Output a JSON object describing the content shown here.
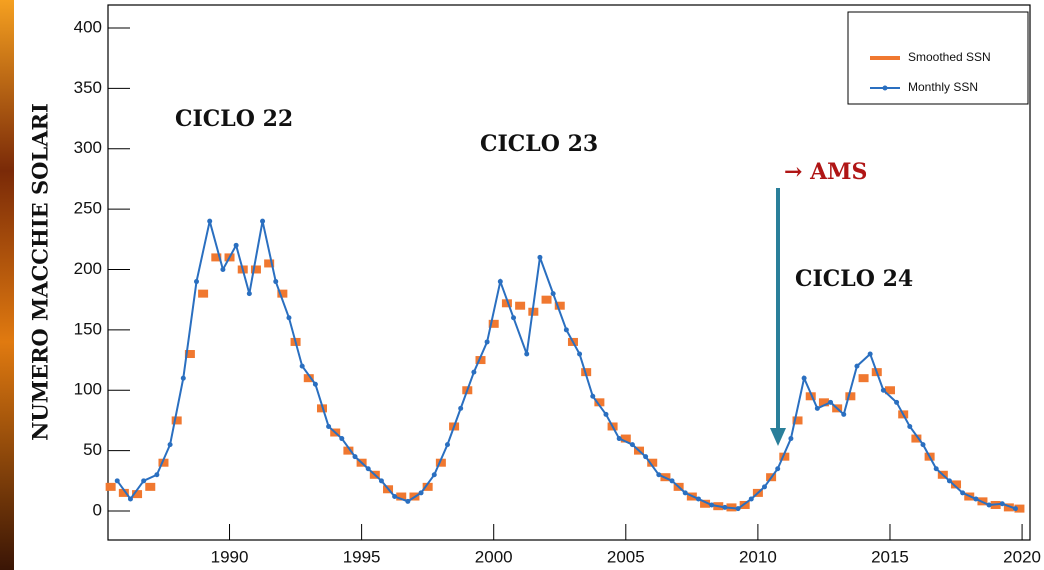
{
  "chart_data": {
    "type": "line",
    "y_label": "NUMERO MACCHIE SOLARI",
    "annotations": [
      "CICLO 22",
      "CICLO 23",
      "CICLO 24",
      "→ AMS"
    ],
    "xlim": [
      1985.4,
      2020.3
    ],
    "ylim": [
      -24,
      419
    ],
    "xticks": [
      1990,
      1995,
      2000,
      2005,
      2010,
      2015,
      2020
    ],
    "yticks": [
      0,
      50,
      100,
      150,
      200,
      250,
      300,
      350,
      400
    ],
    "legend": "top-right",
    "series": [
      {
        "name": "Smoothed SSN",
        "color": "#f07830",
        "x": [
          1985.5,
          1986,
          1986.5,
          1987,
          1987.5,
          1988,
          1988.5,
          1989,
          1989.5,
          1990,
          1990.5,
          1991,
          1991.5,
          1992,
          1992.5,
          1993,
          1993.5,
          1994,
          1994.5,
          1995,
          1995.5,
          1996,
          1996.5,
          1997,
          1997.5,
          1998,
          1998.5,
          1999,
          1999.5,
          2000,
          2000.5,
          2001,
          2001.5,
          2002,
          2002.5,
          2003,
          2003.5,
          2004,
          2004.5,
          2005,
          2005.5,
          2006,
          2006.5,
          2007,
          2007.5,
          2008,
          2008.5,
          2009,
          2009.5,
          2010,
          2010.5,
          2011,
          2011.5,
          2012,
          2012.5,
          2013,
          2013.5,
          2014,
          2014.5,
          2015,
          2015.5,
          2016,
          2016.5,
          2017,
          2017.5,
          2018,
          2018.5,
          2019,
          2019.5,
          2019.9
        ],
        "values": [
          20,
          15,
          14,
          20,
          40,
          75,
          130,
          180,
          210,
          210,
          200,
          200,
          205,
          180,
          140,
          110,
          85,
          65,
          50,
          40,
          30,
          18,
          12,
          12,
          20,
          40,
          70,
          100,
          125,
          155,
          172,
          170,
          165,
          175,
          170,
          140,
          115,
          90,
          70,
          60,
          50,
          40,
          28,
          20,
          12,
          6,
          4,
          3,
          5,
          15,
          28,
          45,
          75,
          95,
          90,
          85,
          95,
          110,
          115,
          100,
          80,
          60,
          45,
          30,
          22,
          12,
          8,
          5,
          3,
          2
        ]
      },
      {
        "name": "Monthly SSN",
        "color": "#2a6fc0",
        "x": [
          1985.75,
          1986.25,
          1986.75,
          1987.25,
          1987.75,
          1988.25,
          1988.75,
          1989.25,
          1989.75,
          1990.25,
          1990.75,
          1991.25,
          1991.75,
          1992.25,
          1992.75,
          1993.25,
          1993.75,
          1994.25,
          1994.75,
          1995.25,
          1995.75,
          1996.25,
          1996.75,
          1997.25,
          1997.75,
          1998.25,
          1998.75,
          1999.25,
          1999.75,
          2000.25,
          2000.75,
          2001.25,
          2001.75,
          2002.25,
          2002.75,
          2003.25,
          2003.75,
          2004.25,
          2004.75,
          2005.25,
          2005.75,
          2006.25,
          2006.75,
          2007.25,
          2007.75,
          2008.25,
          2008.75,
          2009.25,
          2009.75,
          2010.25,
          2010.75,
          2011.25,
          2011.75,
          2012.25,
          2012.75,
          2013.25,
          2013.75,
          2014.25,
          2014.75,
          2015.25,
          2015.75,
          2016.25,
          2016.75,
          2017.25,
          2017.75,
          2018.25,
          2018.75,
          2019.25,
          2019.75
        ],
        "values": [
          25,
          10,
          25,
          30,
          55,
          110,
          190,
          240,
          200,
          220,
          180,
          240,
          190,
          160,
          120,
          105,
          70,
          60,
          45,
          35,
          25,
          12,
          8,
          15,
          30,
          55,
          85,
          115,
          140,
          190,
          160,
          130,
          210,
          180,
          150,
          130,
          95,
          80,
          60,
          55,
          45,
          30,
          25,
          15,
          10,
          5,
          3,
          2,
          10,
          20,
          35,
          60,
          110,
          85,
          90,
          80,
          120,
          130,
          100,
          90,
          70,
          55,
          35,
          25,
          15,
          10,
          5,
          6,
          2
        ]
      }
    ]
  }
}
